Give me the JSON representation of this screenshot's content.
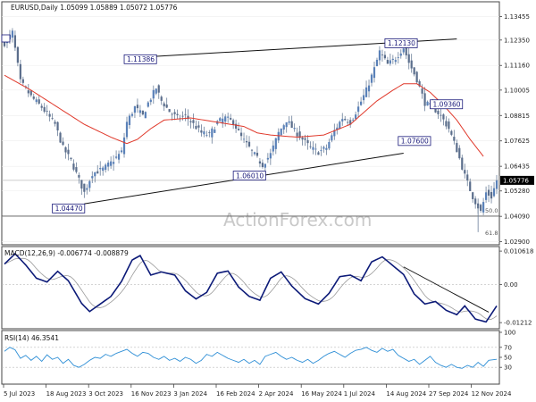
{
  "chart_data": [
    {
      "type": "candlestick",
      "header": "EURUSD,Daily  1.05099 1.05889 1.05072 1.05776",
      "watermark": "ActionForex.com",
      "ylim": [
        1.028,
        1.141
      ],
      "y_ticks": [
        "1.13455",
        "1.12350",
        "1.11160",
        "1.10005",
        "1.08815",
        "1.07625",
        "1.06435",
        "1.05280",
        "1.04090",
        "1.02900"
      ],
      "current_price": "1.05776",
      "x_ticks": [
        "5 Jul 2023",
        "18 Aug 2023",
        "3 Oct 2023",
        "16 Nov 2023",
        "3 Jan 2024",
        "16 Feb 2024",
        "2 Apr 2024",
        "16 May 2024",
        "1 Jul 2024",
        "14 Aug 2024",
        "27 Sep 2024",
        "12 Nov 2024"
      ],
      "close_path": [
        [
          0,
          1.122
        ],
        [
          3,
          1.127
        ],
        [
          6,
          1.104
        ],
        [
          10,
          1.097
        ],
        [
          14,
          1.092
        ],
        [
          19,
          1.084
        ],
        [
          22,
          1.073
        ],
        [
          25,
          1.067
        ],
        [
          28,
          1.058
        ],
        [
          30,
          1.052
        ],
        [
          33,
          1.061
        ],
        [
          37,
          1.063
        ],
        [
          40,
          1.066
        ],
        [
          44,
          1.071
        ],
        [
          46,
          1.085
        ],
        [
          49,
          1.092
        ],
        [
          52,
          1.088
        ],
        [
          54,
          1.094
        ],
        [
          57,
          1.101
        ],
        [
          59,
          1.095
        ],
        [
          62,
          1.09
        ],
        [
          65,
          1.087
        ],
        [
          68,
          1.088
        ],
        [
          71,
          1.084
        ],
        [
          74,
          1.08
        ],
        [
          77,
          1.079
        ],
        [
          80,
          1.085
        ],
        [
          83,
          1.087
        ],
        [
          86,
          1.085
        ],
        [
          89,
          1.078
        ],
        [
          92,
          1.073
        ],
        [
          95,
          1.068
        ],
        [
          97,
          1.065
        ],
        [
          100,
          1.07
        ],
        [
          103,
          1.08
        ],
        [
          106,
          1.086
        ],
        [
          109,
          1.081
        ],
        [
          112,
          1.077
        ],
        [
          115,
          1.073
        ],
        [
          118,
          1.071
        ],
        [
          121,
          1.073
        ],
        [
          124,
          1.081
        ],
        [
          127,
          1.087
        ],
        [
          130,
          1.085
        ],
        [
          133,
          1.092
        ],
        [
          136,
          1.1
        ],
        [
          139,
          1.11
        ],
        [
          141,
          1.118
        ],
        [
          144,
          1.112
        ],
        [
          147,
          1.115
        ],
        [
          150,
          1.12
        ],
        [
          152,
          1.113
        ],
        [
          155,
          1.105
        ],
        [
          158,
          1.094
        ],
        [
          161,
          1.092
        ],
        [
          164,
          1.088
        ],
        [
          167,
          1.082
        ],
        [
          170,
          1.072
        ],
        [
          173,
          1.06
        ],
        [
          176,
          1.05
        ],
        [
          179,
          1.043
        ],
        [
          181,
          1.052
        ],
        [
          183,
          1.05
        ],
        [
          185,
          1.0578
        ]
      ],
      "sma": [
        [
          0,
          1.107
        ],
        [
          10,
          1.1
        ],
        [
          20,
          1.092
        ],
        [
          30,
          1.084
        ],
        [
          40,
          1.078
        ],
        [
          46,
          1.075
        ],
        [
          50,
          1.077
        ],
        [
          55,
          1.082
        ],
        [
          60,
          1.086
        ],
        [
          70,
          1.087
        ],
        [
          80,
          1.085
        ],
        [
          90,
          1.083
        ],
        [
          95,
          1.08
        ],
        [
          100,
          1.079
        ],
        [
          110,
          1.078
        ],
        [
          120,
          1.079
        ],
        [
          130,
          1.084
        ],
        [
          140,
          1.095
        ],
        [
          146,
          1.1
        ],
        [
          150,
          1.103
        ],
        [
          155,
          1.103
        ],
        [
          160,
          1.099
        ],
        [
          165,
          1.093
        ],
        [
          170,
          1.086
        ],
        [
          175,
          1.077
        ],
        [
          180,
          1.069
        ]
      ],
      "trendlines": [
        {
          "from": [
            45,
            1.115
          ],
          "to": [
            170,
            1.124
          ]
        },
        {
          "from": [
            30,
            1.0468
          ],
          "to": [
            150,
            1.0705
          ]
        }
      ],
      "levels": [
        {
          "label": "1.11386",
          "x": 45,
          "y": 1.1145
        },
        {
          "label": "1.12130",
          "x": 143,
          "y": 1.122
        },
        {
          "label": "1.09360",
          "x": 160,
          "y": 1.0934
        },
        {
          "label": "1.07600",
          "x": 148,
          "y": 1.0762
        },
        {
          "label": "1.06010",
          "x": 86,
          "y": 1.06
        },
        {
          "label": "1.04470",
          "x": 18,
          "y": 1.0446
        }
      ],
      "hline": 1.041,
      "fib_labels": [
        {
          "label": "50.0",
          "y": 1.042
        },
        {
          "label": "61.8",
          "y": 1.0315
        }
      ]
    },
    {
      "type": "line",
      "header": "MACD(12,26,9) -0.006774 -0.008879",
      "ylim": [
        -0.0135,
        0.0115
      ],
      "y_ticks": [
        "0.010618",
        "0.00",
        "-0.01212"
      ],
      "main": [
        [
          0,
          0.0065
        ],
        [
          4,
          0.0098
        ],
        [
          8,
          0.0062
        ],
        [
          12,
          0.002
        ],
        [
          16,
          0.0008
        ],
        [
          20,
          0.0042
        ],
        [
          24,
          0.0012
        ],
        [
          29,
          -0.006
        ],
        [
          32,
          -0.0086
        ],
        [
          36,
          -0.0062
        ],
        [
          40,
          -0.0038
        ],
        [
          44,
          0.001
        ],
        [
          48,
          0.0078
        ],
        [
          51,
          0.0092
        ],
        [
          55,
          0.003
        ],
        [
          59,
          0.004
        ],
        [
          64,
          0.003
        ],
        [
          68,
          -0.002
        ],
        [
          72,
          -0.0046
        ],
        [
          76,
          -0.0025
        ],
        [
          80,
          0.0036
        ],
        [
          84,
          0.0043
        ],
        [
          88,
          -0.0008
        ],
        [
          92,
          -0.0038
        ],
        [
          96,
          -0.005
        ],
        [
          100,
          0.002
        ],
        [
          104,
          0.004
        ],
        [
          108,
          -0.0005
        ],
        [
          113,
          -0.0045
        ],
        [
          118,
          -0.0062
        ],
        [
          122,
          -0.0028
        ],
        [
          126,
          0.0025
        ],
        [
          130,
          0.003
        ],
        [
          134,
          0.0012
        ],
        [
          138,
          0.0072
        ],
        [
          142,
          0.0088
        ],
        [
          146,
          0.006
        ],
        [
          150,
          0.0032
        ],
        [
          154,
          -0.003
        ],
        [
          158,
          -0.0062
        ],
        [
          162,
          -0.0054
        ],
        [
          166,
          -0.0082
        ],
        [
          170,
          -0.0096
        ],
        [
          173,
          -0.0068
        ],
        [
          177,
          -0.011
        ],
        [
          181,
          -0.0119
        ],
        [
          185,
          -0.0068
        ]
      ],
      "signal_offset_bars": 3,
      "trendline": {
        "from": [
          150,
          0.0056
        ],
        "to": [
          182,
          -0.0088
        ]
      }
    },
    {
      "type": "line",
      "header": "RSI(14) 46.3541",
      "ylim": [
        0,
        100
      ],
      "y_ticks": [
        "100",
        "70",
        "50",
        "30"
      ],
      "levels": [
        70,
        30
      ],
      "rsi": [
        [
          0,
          62
        ],
        [
          2,
          70
        ],
        [
          4,
          65
        ],
        [
          6,
          48
        ],
        [
          8,
          54
        ],
        [
          10,
          44
        ],
        [
          12,
          52
        ],
        [
          14,
          42
        ],
        [
          16,
          55
        ],
        [
          18,
          46
        ],
        [
          20,
          50
        ],
        [
          22,
          38
        ],
        [
          24,
          46
        ],
        [
          26,
          34
        ],
        [
          28,
          30
        ],
        [
          30,
          36
        ],
        [
          32,
          44
        ],
        [
          34,
          50
        ],
        [
          36,
          48
        ],
        [
          38,
          56
        ],
        [
          40,
          52
        ],
        [
          42,
          58
        ],
        [
          44,
          62
        ],
        [
          46,
          66
        ],
        [
          48,
          58
        ],
        [
          50,
          52
        ],
        [
          52,
          60
        ],
        [
          54,
          58
        ],
        [
          56,
          50
        ],
        [
          58,
          46
        ],
        [
          60,
          52
        ],
        [
          62,
          44
        ],
        [
          64,
          48
        ],
        [
          66,
          42
        ],
        [
          68,
          50
        ],
        [
          70,
          46
        ],
        [
          72,
          38
        ],
        [
          74,
          44
        ],
        [
          76,
          56
        ],
        [
          78,
          52
        ],
        [
          80,
          60
        ],
        [
          82,
          54
        ],
        [
          84,
          48
        ],
        [
          86,
          44
        ],
        [
          88,
          40
        ],
        [
          90,
          46
        ],
        [
          92,
          38
        ],
        [
          94,
          44
        ],
        [
          96,
          36
        ],
        [
          98,
          52
        ],
        [
          100,
          56
        ],
        [
          102,
          60
        ],
        [
          104,
          52
        ],
        [
          106,
          46
        ],
        [
          108,
          50
        ],
        [
          110,
          44
        ],
        [
          112,
          40
        ],
        [
          114,
          46
        ],
        [
          116,
          38
        ],
        [
          118,
          44
        ],
        [
          120,
          52
        ],
        [
          122,
          58
        ],
        [
          124,
          62
        ],
        [
          126,
          56
        ],
        [
          128,
          50
        ],
        [
          130,
          58
        ],
        [
          132,
          64
        ],
        [
          134,
          66
        ],
        [
          136,
          70
        ],
        [
          138,
          64
        ],
        [
          140,
          60
        ],
        [
          142,
          68
        ],
        [
          144,
          62
        ],
        [
          146,
          66
        ],
        [
          148,
          54
        ],
        [
          150,
          48
        ],
        [
          152,
          42
        ],
        [
          154,
          46
        ],
        [
          156,
          36
        ],
        [
          158,
          44
        ],
        [
          160,
          52
        ],
        [
          162,
          40
        ],
        [
          164,
          34
        ],
        [
          166,
          30
        ],
        [
          168,
          36
        ],
        [
          170,
          30
        ],
        [
          172,
          28
        ],
        [
          174,
          34
        ],
        [
          176,
          30
        ],
        [
          178,
          40
        ],
        [
          180,
          32
        ],
        [
          182,
          44
        ],
        [
          185,
          46
        ]
      ]
    }
  ]
}
